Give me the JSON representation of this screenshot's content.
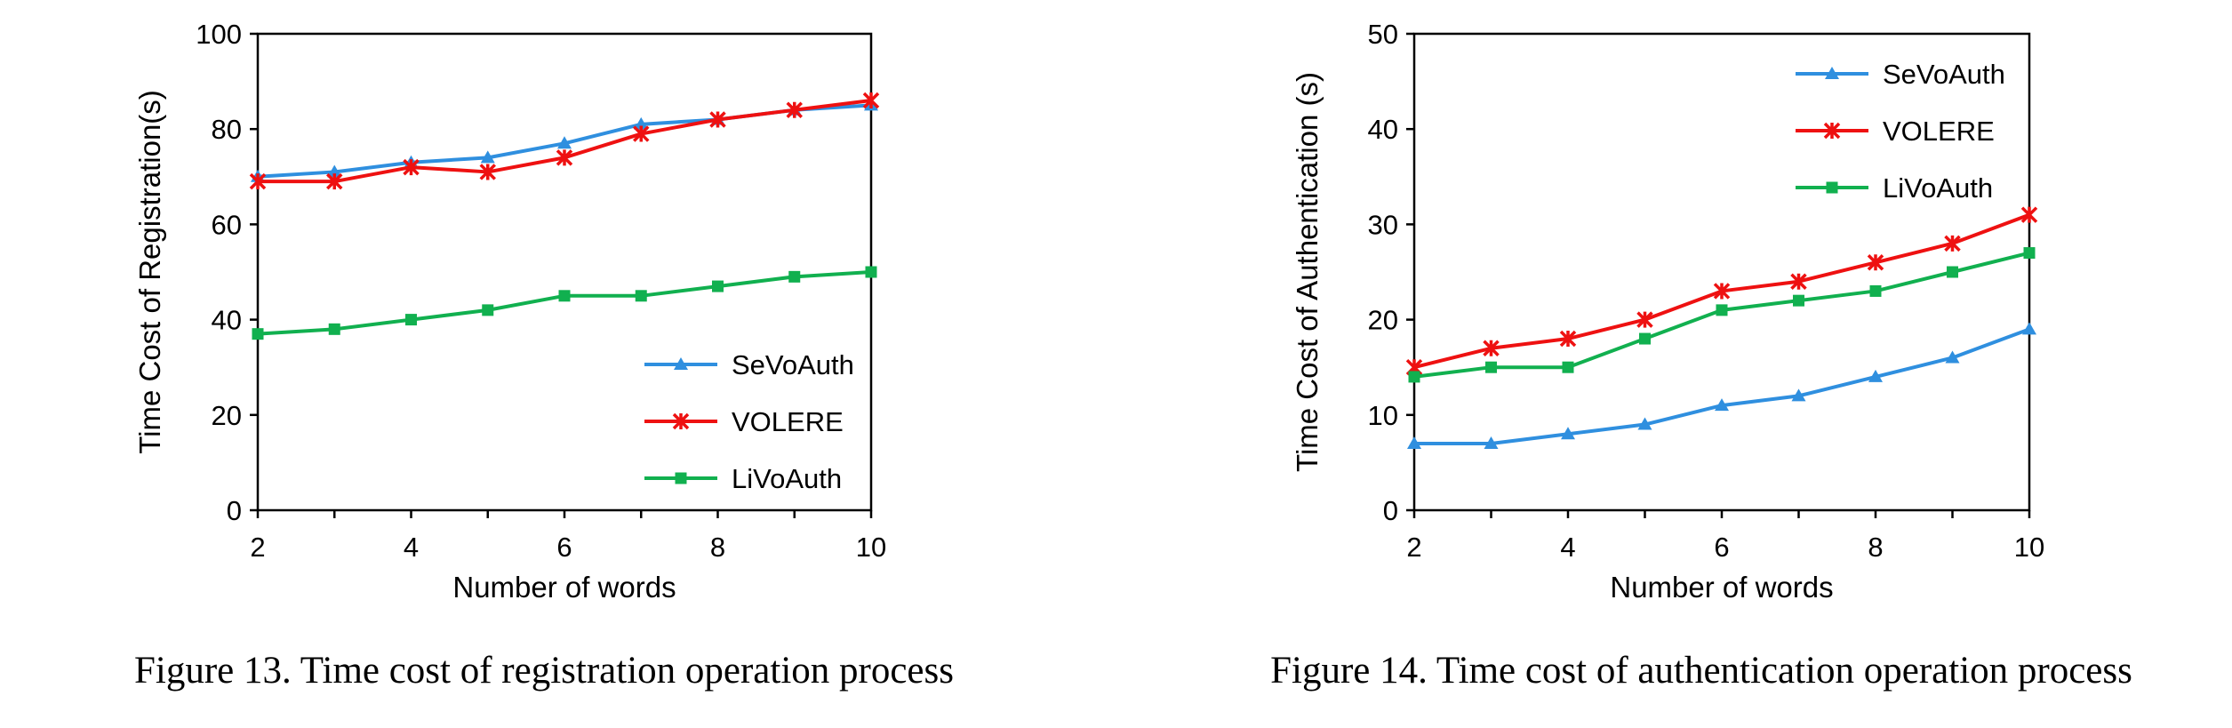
{
  "chart_data": [
    {
      "type": "line",
      "xlabel": "Number of words",
      "ylabel": "Time Cost of Registration(s)",
      "caption": "Figure 13. Time cost of registration operation process",
      "x": [
        2,
        3,
        4,
        5,
        6,
        7,
        8,
        9,
        10
      ],
      "xticks": [
        "2",
        "4",
        "6",
        "8",
        "10"
      ],
      "xlim": [
        2,
        10
      ],
      "yticks": [
        "0",
        "20",
        "40",
        "60",
        "80",
        "100"
      ],
      "ylim": [
        0,
        100
      ],
      "grid": false,
      "legend_position": "bottom-right",
      "series": [
        {
          "name": "SeVoAuth",
          "color": "#2F8FDF",
          "marker": "triangle",
          "values": [
            70,
            71,
            73,
            74,
            77,
            81,
            82,
            84,
            85
          ]
        },
        {
          "name": "VOLERE",
          "color": "#EE1111",
          "marker": "star",
          "values": [
            69,
            69,
            72,
            71,
            74,
            79,
            82,
            84,
            86
          ]
        },
        {
          "name": "LiVoAuth",
          "color": "#11B04F",
          "marker": "square",
          "values": [
            37,
            38,
            40,
            42,
            45,
            45,
            47,
            49,
            50
          ]
        }
      ]
    },
    {
      "type": "line",
      "xlabel": "Number of words",
      "ylabel": "Time Cost of Authentication (s)",
      "caption": "Figure 14. Time cost of authentication operation process",
      "x": [
        2,
        3,
        4,
        5,
        6,
        7,
        8,
        9,
        10
      ],
      "xticks": [
        "2",
        "4",
        "6",
        "8",
        "10"
      ],
      "xlim": [
        2,
        10
      ],
      "yticks": [
        "0",
        "10",
        "20",
        "30",
        "40",
        "50"
      ],
      "ylim": [
        0,
        50
      ],
      "grid": false,
      "legend_position": "top-right",
      "series": [
        {
          "name": "SeVoAuth",
          "color": "#2F8FDF",
          "marker": "triangle",
          "values": [
            7,
            7,
            8,
            9,
            11,
            12,
            14,
            16,
            19
          ]
        },
        {
          "name": "VOLERE",
          "color": "#EE1111",
          "marker": "star",
          "values": [
            15,
            17,
            18,
            20,
            23,
            24,
            26,
            28,
            31
          ]
        },
        {
          "name": "LiVoAuth",
          "color": "#11B04F",
          "marker": "square",
          "values": [
            14,
            15,
            15,
            18,
            21,
            22,
            23,
            25,
            27
          ]
        }
      ]
    }
  ]
}
